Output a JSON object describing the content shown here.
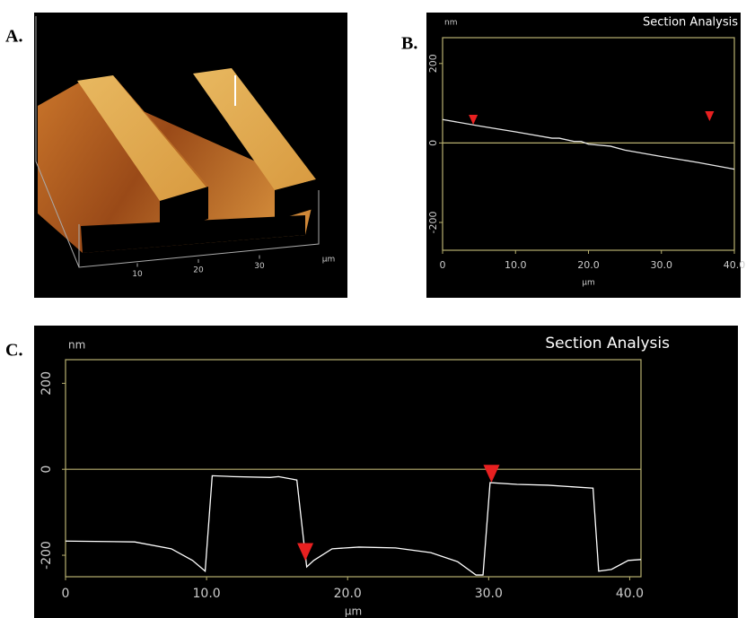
{
  "panel_labels": [
    "A.",
    "B.",
    "C."
  ],
  "chart_data": [
    {
      "type": "surface",
      "xticks": [
        10,
        20,
        30
      ],
      "xlabel": "μm"
    },
    {
      "type": "line",
      "title": "Section Analysis",
      "ylabel": "nm",
      "xlabel": "μm",
      "xlim": [
        0,
        40
      ],
      "ylim": [
        -270,
        265
      ],
      "xticks": [
        0,
        {
          "value": 10,
          "label": "10.0"
        },
        {
          "value": 20,
          "label": "20.0"
        },
        {
          "value": 30,
          "label": "30.0"
        },
        {
          "value": 40,
          "label": "40.0"
        }
      ],
      "yticks": [
        200,
        0,
        -200
      ],
      "x": [
        0,
        5,
        10,
        15,
        16,
        18,
        19,
        20,
        23,
        25,
        30,
        35,
        40
      ],
      "series": [
        {
          "color": "#e8e8e8",
          "values": [
            59,
            43,
            28,
            12,
            12,
            4,
            4,
            -3,
            -8,
            -18,
            -34,
            -49,
            -66
          ]
        }
      ],
      "markers": [
        {
          "x": 4.2,
          "y": 46
        },
        {
          "x": 36.6,
          "y": 55
        }
      ]
    },
    {
      "type": "line",
      "title": "Section Analysis",
      "ylabel": "nm",
      "xlabel": "μm",
      "xlim": [
        0,
        40.8
      ],
      "ylim": [
        -250,
        255
      ],
      "xticks": [
        0,
        {
          "value": 10,
          "label": "10.0"
        },
        {
          "value": 20,
          "label": "20.0"
        },
        {
          "value": 30,
          "label": "30.0"
        },
        {
          "value": 40,
          "label": "40.0"
        }
      ],
      "yticks": [
        200,
        0,
        -200
      ],
      "x": [
        0,
        4.9,
        7.5,
        9.0,
        9.9,
        10.4,
        11.9,
        14.5,
        15.1,
        16.1,
        16.4,
        16.9,
        17.1,
        17.6,
        18.9,
        20.8,
        23.4,
        25.9,
        27.8,
        29.1,
        29.6,
        30.1,
        32.0,
        34.2,
        37.4,
        37.8,
        38.7,
        39.9,
        40.8
      ],
      "series": [
        {
          "color": "#ffffff",
          "values": [
            -167,
            -169,
            -185,
            -212,
            -237,
            -15,
            -17,
            -19,
            -17,
            -23,
            -25,
            -171,
            -227,
            -212,
            -185,
            -181,
            -183,
            -194,
            -215,
            -246,
            -246,
            -31,
            -35,
            -37,
            -44,
            -237,
            -233,
            -212,
            -210
          ]
        }
      ],
      "markers": [
        {
          "x": 17.0,
          "y": -213
        },
        {
          "x": 30.2,
          "y": -31
        }
      ]
    }
  ]
}
